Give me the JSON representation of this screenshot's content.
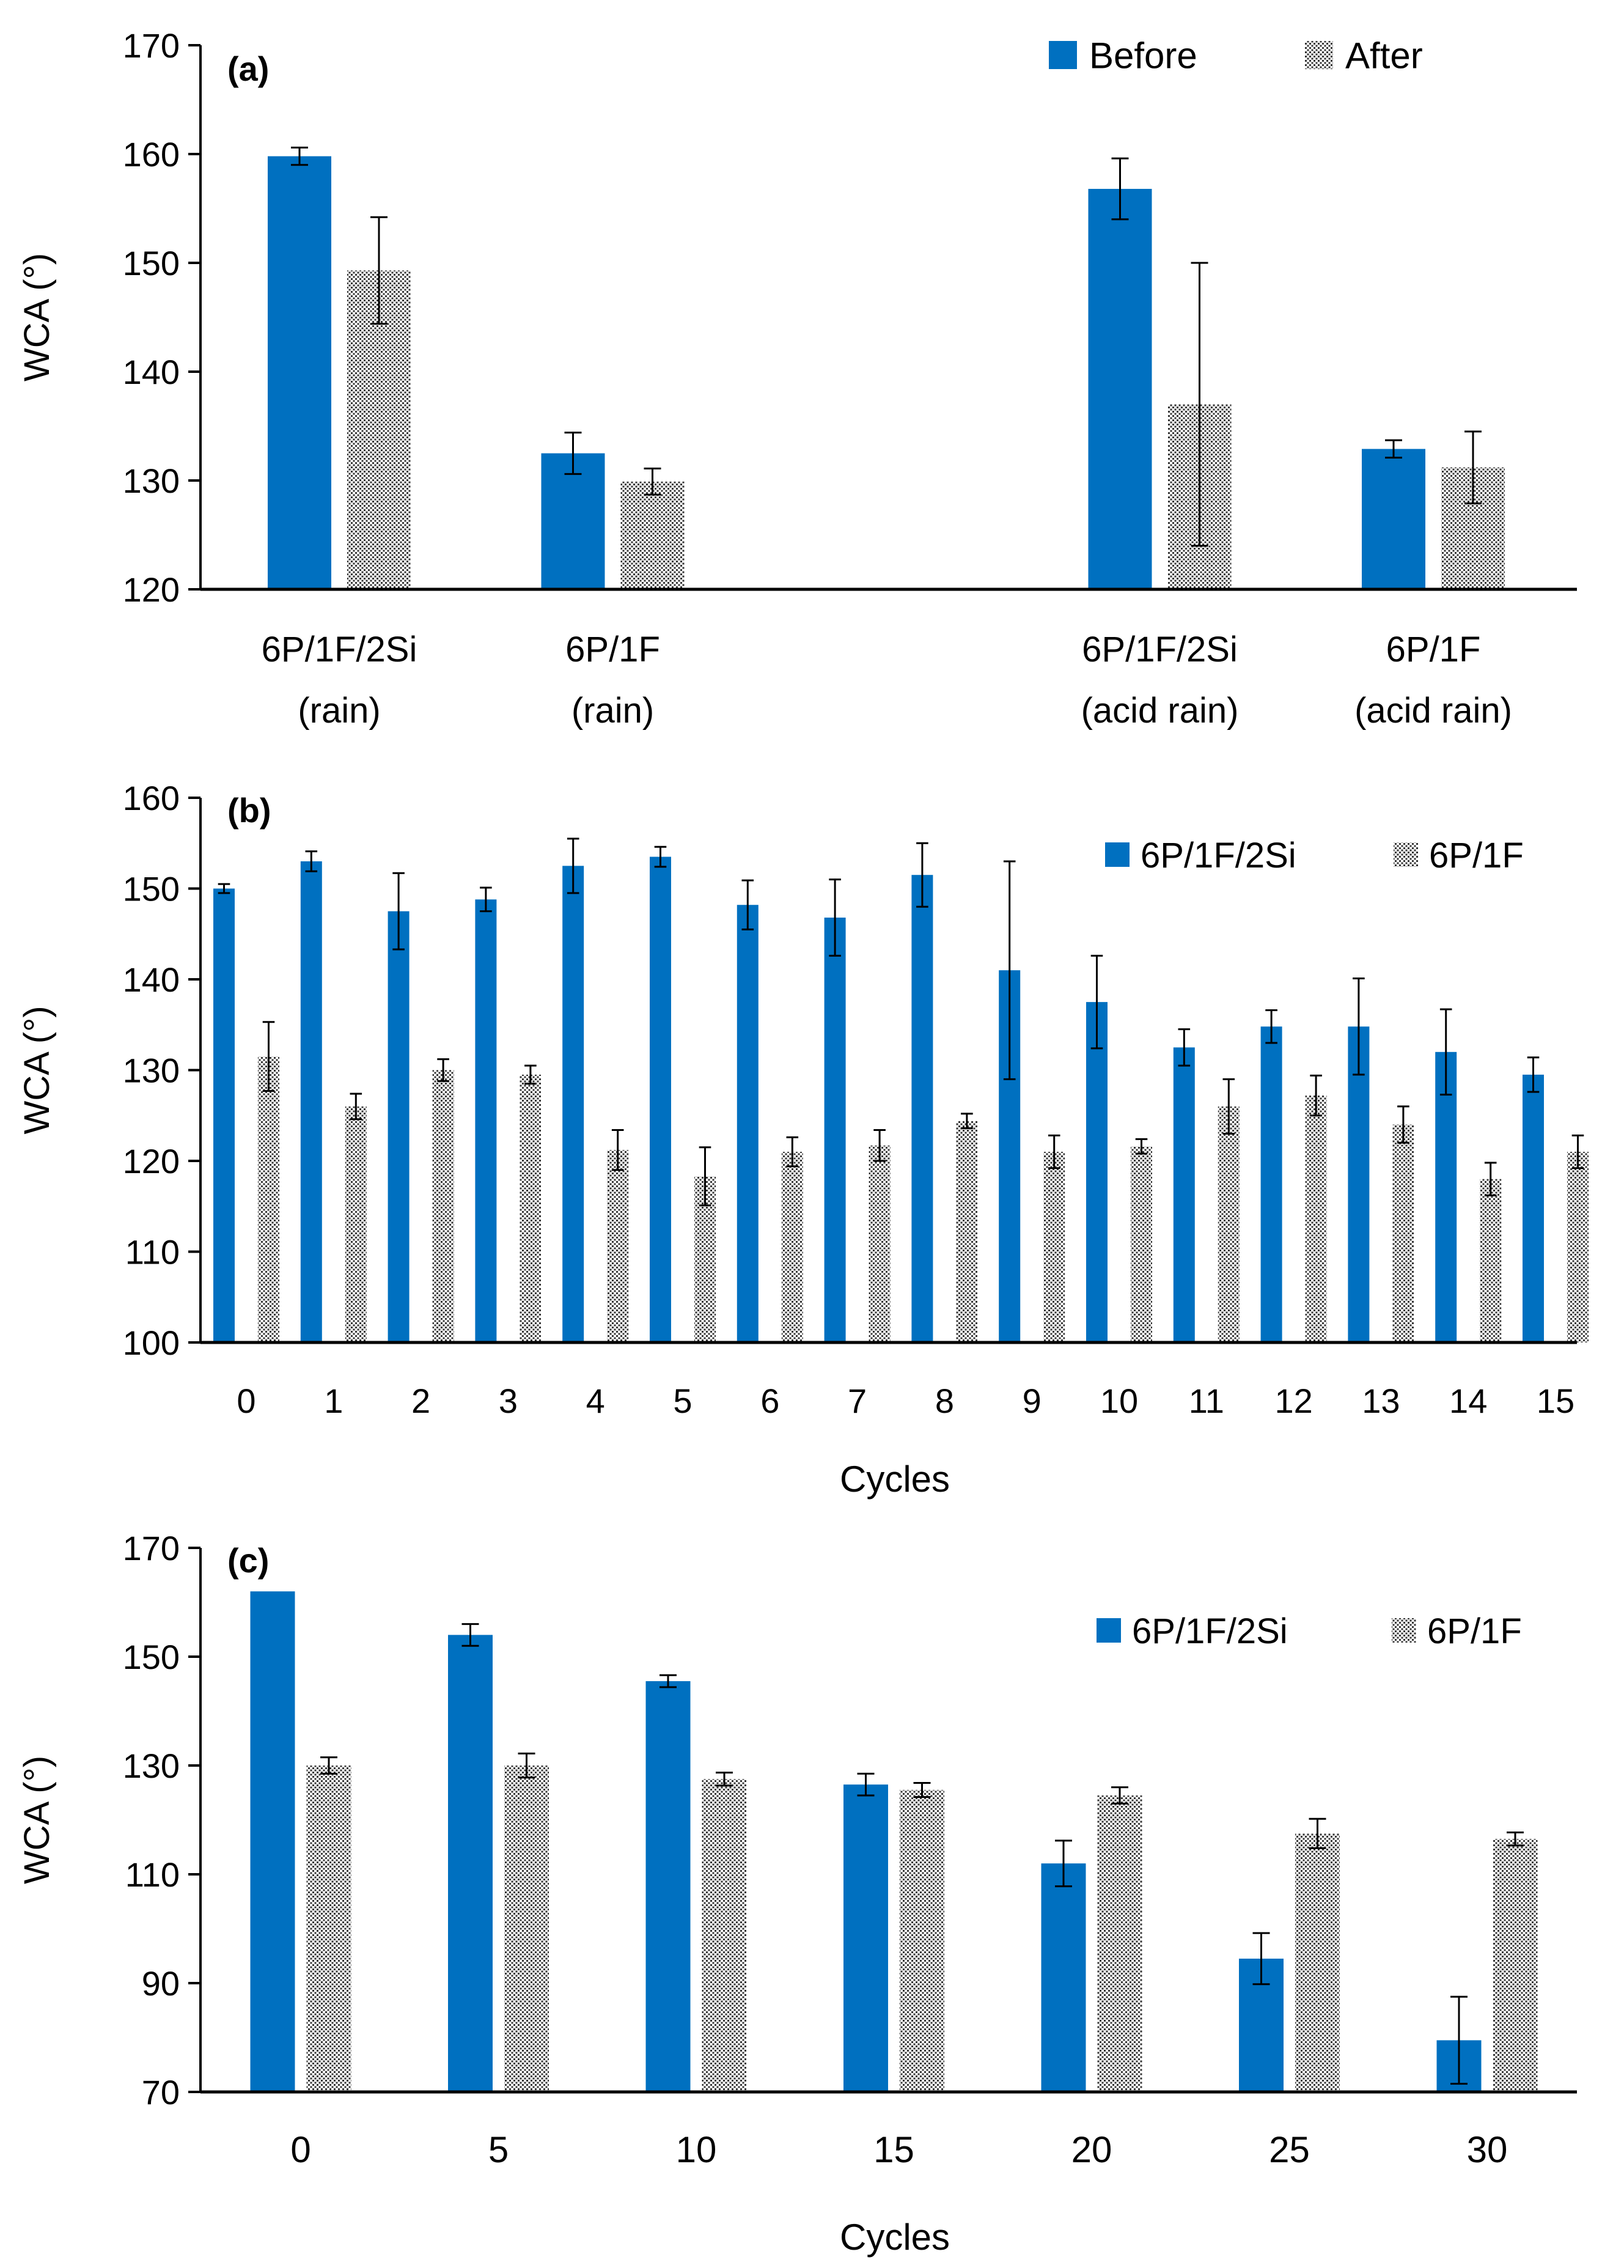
{
  "colors": {
    "primary_series": "#0070C0",
    "secondary_series_fill": "#ffffff",
    "secondary_series_pattern": "#333333",
    "axis": "#000000",
    "error_bar": "#000000"
  },
  "chart_data": [
    {
      "id": "a",
      "type": "bar",
      "panel_label": "(a)",
      "ylabel": "WCA (°)",
      "xlabel": "",
      "ylim": [
        120,
        170
      ],
      "yticks": [
        120,
        130,
        140,
        150,
        160,
        170
      ],
      "grid": false,
      "legend_position": "top-right",
      "categories": [
        {
          "line1": "6P/1F/2Si",
          "line2": "(rain)"
        },
        {
          "line1": "6P/1F",
          "line2": "(rain)"
        },
        {
          "line1": "",
          "line2": ""
        },
        {
          "line1": "6P/1F/2Si",
          "line2": "(acid rain)"
        },
        {
          "line1": "6P/1F",
          "line2": "(acid rain)"
        }
      ],
      "series": [
        {
          "name": "Before",
          "style": "solid",
          "values": [
            159.8,
            132.5,
            null,
            156.8,
            132.9
          ],
          "errors": [
            0.8,
            1.9,
            null,
            2.8,
            0.8
          ]
        },
        {
          "name": "After",
          "style": "pattern",
          "values": [
            149.3,
            129.9,
            null,
            137.0,
            131.2
          ],
          "errors": [
            4.9,
            1.2,
            null,
            13.0,
            3.3
          ]
        }
      ]
    },
    {
      "id": "b",
      "type": "bar",
      "panel_label": "(b)",
      "ylabel": "WCA (°)",
      "xlabel": "Cycles",
      "ylim": [
        100,
        160
      ],
      "yticks": [
        100,
        110,
        120,
        130,
        140,
        150,
        160
      ],
      "grid": false,
      "legend_position": "top-right",
      "categories": [
        "0",
        "1",
        "2",
        "3",
        "4",
        "5",
        "6",
        "7",
        "8",
        "9",
        "10",
        "11",
        "12",
        "13",
        "14",
        "15"
      ],
      "series": [
        {
          "name": "6P/1F/2Si",
          "style": "solid",
          "values": [
            150.0,
            153.0,
            147.5,
            148.8,
            152.5,
            153.5,
            148.2,
            146.8,
            151.5,
            141.0,
            137.5,
            132.5,
            134.8,
            134.8,
            132.0,
            129.5
          ],
          "errors": [
            0.5,
            1.1,
            4.2,
            1.3,
            3.0,
            1.1,
            2.7,
            4.2,
            3.5,
            12.0,
            5.1,
            2.0,
            1.8,
            5.3,
            4.7,
            1.9
          ]
        },
        {
          "name": "6P/1F",
          "style": "pattern",
          "values": [
            131.5,
            126.0,
            130.0,
            129.5,
            121.2,
            118.3,
            121.0,
            121.7,
            124.4,
            121.0,
            121.6,
            126.0,
            127.2,
            124.0,
            118.0,
            121.0
          ],
          "errors": [
            3.8,
            1.4,
            1.2,
            1.0,
            2.2,
            3.2,
            1.6,
            1.7,
            0.8,
            1.8,
            0.8,
            3.0,
            2.2,
            2.0,
            1.8,
            1.8
          ]
        }
      ]
    },
    {
      "id": "c",
      "type": "bar",
      "panel_label": "(c)",
      "ylabel": "WCA (°)",
      "xlabel": "Cycles",
      "ylim": [
        70,
        170
      ],
      "yticks": [
        70,
        90,
        110,
        130,
        150,
        170
      ],
      "grid": false,
      "legend_position": "top-right",
      "categories": [
        "0",
        "5",
        "10",
        "15",
        "20",
        "25",
        "30"
      ],
      "series": [
        {
          "name": "6P/1F/2Si",
          "style": "solid",
          "values": [
            162.0,
            154.0,
            145.5,
            126.5,
            112.0,
            94.5,
            79.5
          ],
          "errors": [
            0.0,
            2.0,
            1.1,
            2.0,
            4.2,
            4.7,
            8.0
          ]
        },
        {
          "name": "6P/1F",
          "style": "pattern",
          "values": [
            130.0,
            130.0,
            127.5,
            125.5,
            124.5,
            117.5,
            116.5
          ],
          "errors": [
            1.5,
            2.2,
            1.2,
            1.3,
            1.5,
            2.7,
            1.2
          ]
        }
      ]
    }
  ]
}
